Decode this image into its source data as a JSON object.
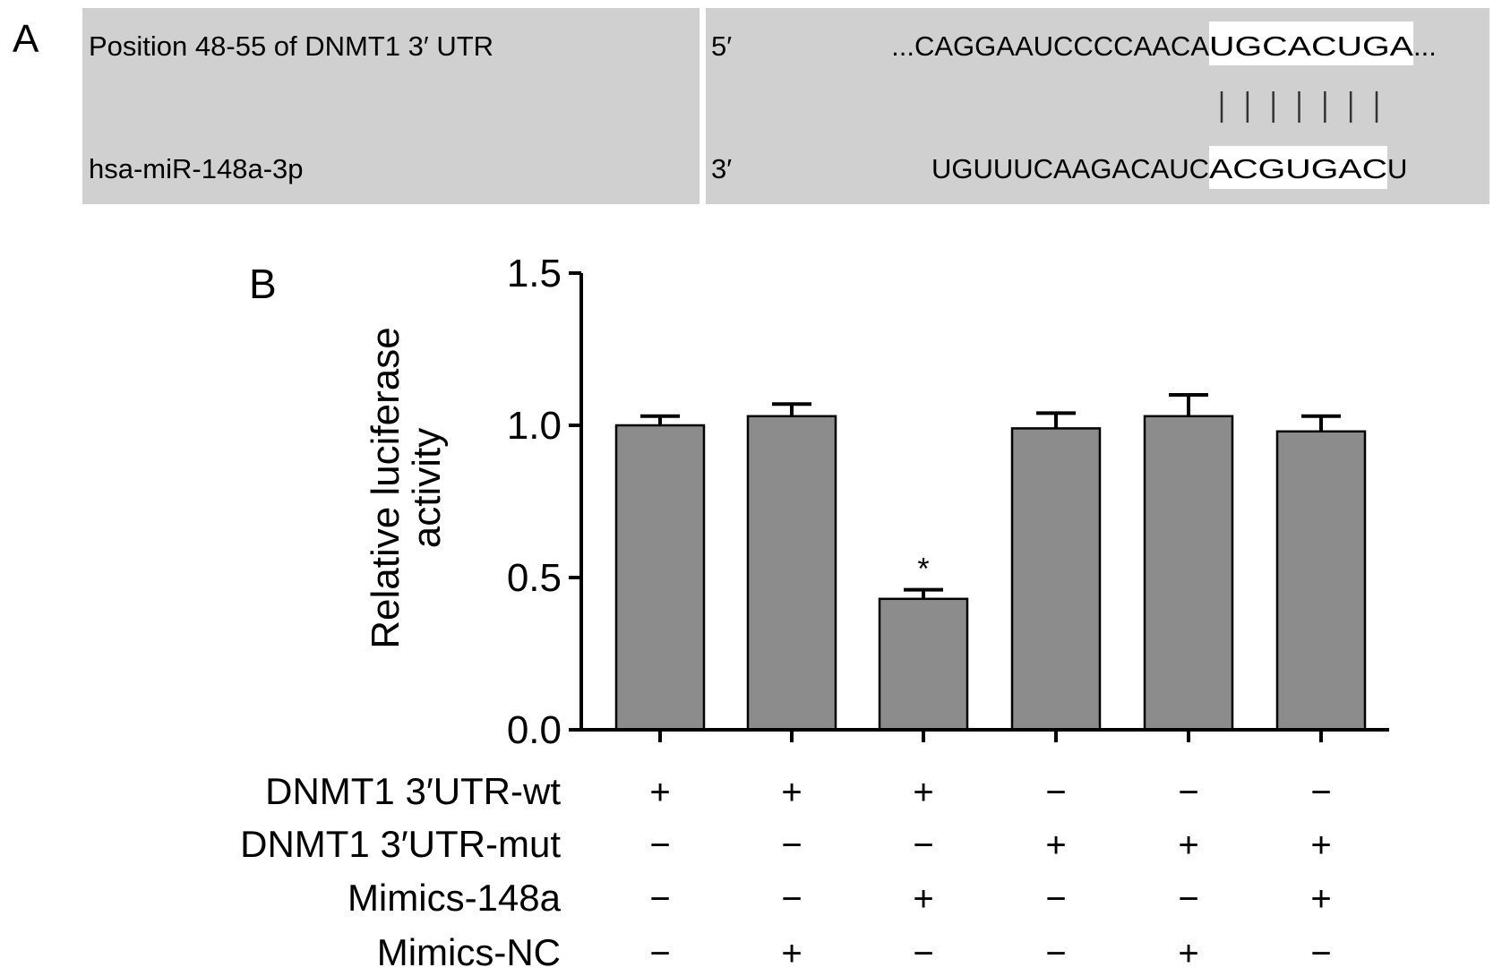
{
  "panel_a": {
    "label": "A",
    "row1_name": "Position 48-55 of DNMT1 3′ UTR",
    "row1_end": "5′",
    "row1_seq_pre": "...CAGGAAUCCCCAACA",
    "row1_seq_match": "UGCACUGA",
    "row1_seq_post": "...",
    "row2_name": "hsa-miR-148a-3p",
    "row2_end": "3′",
    "row2_seq_pre": "UGUUUCAAGACAUC",
    "row2_seq_match": "ACGUGAC",
    "row2_seq_post": "U",
    "pairing_lines": 7,
    "box_color": "#d0d0d0"
  },
  "chart_data": {
    "type": "bar",
    "panel_label": "B",
    "ylabel_line1": "Relative luciferase",
    "ylabel_line2": "activity",
    "ylim": [
      0,
      1.5
    ],
    "yticks": [
      "0.0",
      "0.5",
      "1.0",
      "1.5"
    ],
    "values": [
      1.0,
      1.03,
      0.43,
      0.99,
      1.03,
      0.98
    ],
    "errors": [
      0.03,
      0.04,
      0.03,
      0.05,
      0.07,
      0.05
    ],
    "annotations": [
      "",
      "",
      "*",
      "",
      "",
      ""
    ],
    "bar_color": "#8c8c8c",
    "grid": false,
    "conditions": [
      {
        "label": "DNMT1 3′UTR-wt",
        "signs": [
          "+",
          "+",
          "+",
          "−",
          "−",
          "−"
        ]
      },
      {
        "label": "DNMT1 3′UTR-mut",
        "signs": [
          "−",
          "−",
          "−",
          "+",
          "+",
          "+"
        ]
      },
      {
        "label": "Mimics-148a",
        "signs": [
          "−",
          "−",
          "+",
          "−",
          "−",
          "+"
        ]
      },
      {
        "label": "Mimics-NC",
        "signs": [
          "−",
          "+",
          "−",
          "−",
          "+",
          "−"
        ]
      }
    ]
  }
}
